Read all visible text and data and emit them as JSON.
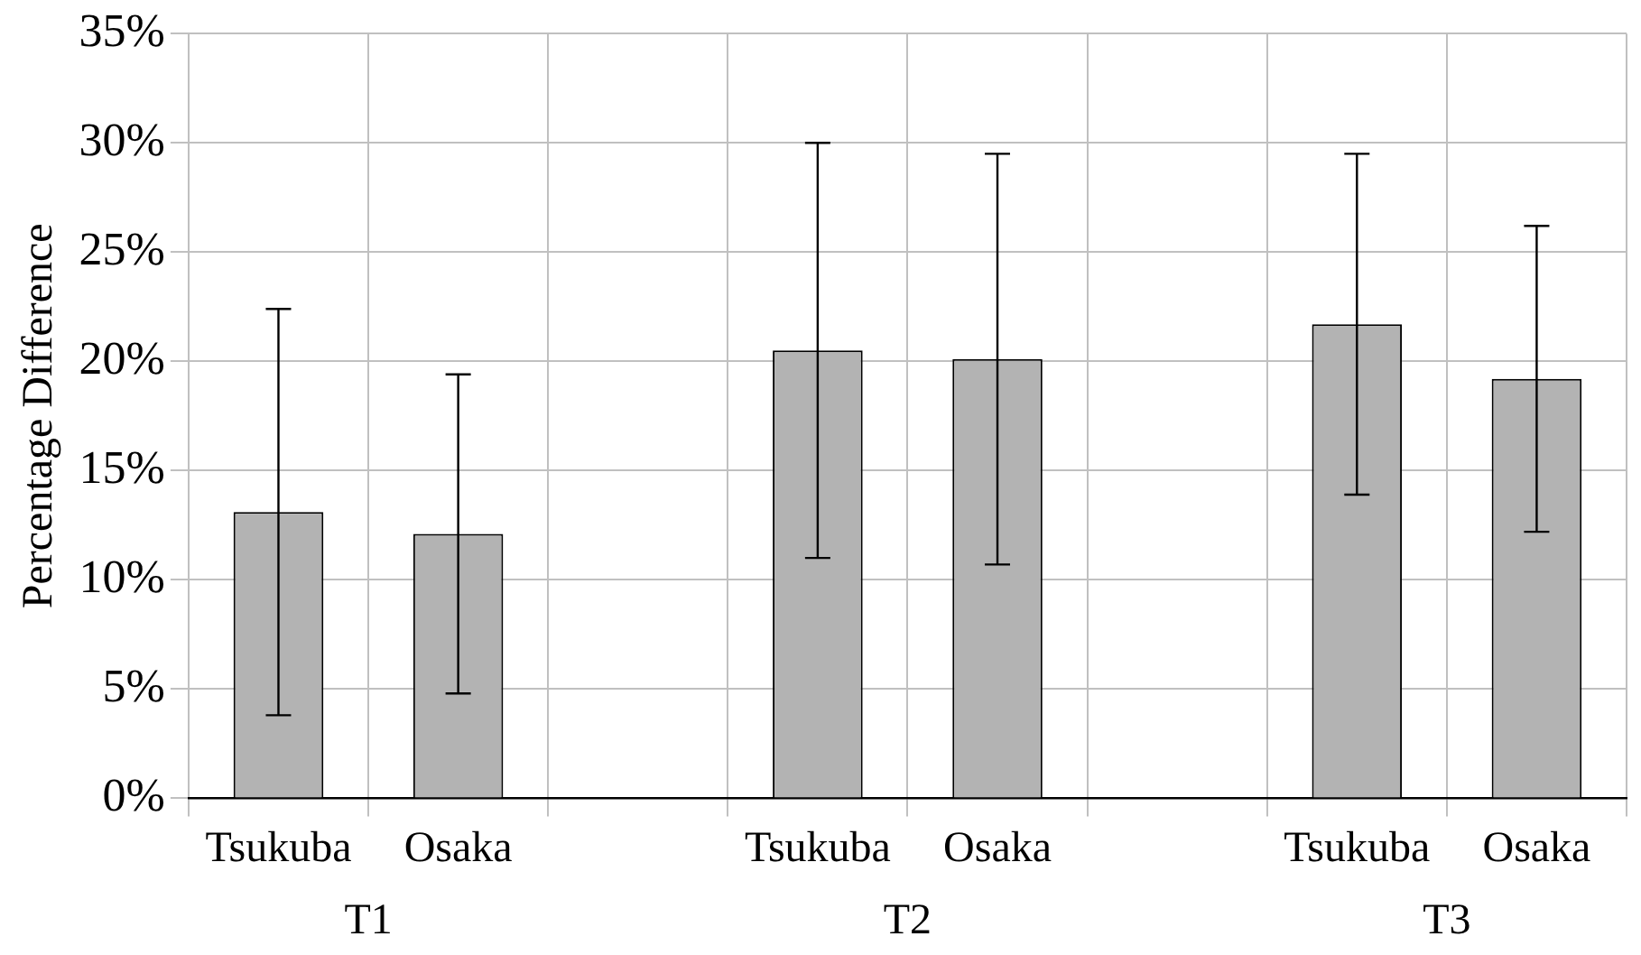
{
  "chart_data": {
    "type": "bar",
    "ylabel": "Percentage Difference",
    "categories": [
      "Tsukuba",
      "Osaka",
      null,
      "Tsukuba",
      "Osaka",
      null,
      "Tsukuba",
      "Osaka"
    ],
    "values": [
      13.1,
      12.1,
      0,
      20.5,
      20.1,
      0,
      21.7,
      19.2
    ],
    "errors": [
      [
        3.8,
        22.4
      ],
      [
        4.8,
        19.4
      ],
      null,
      [
        11.0,
        30.0
      ],
      [
        10.7,
        29.5
      ],
      null,
      [
        13.9,
        29.5
      ],
      [
        12.2,
        26.2
      ]
    ],
    "color": "#b3b3b3",
    "ylim": [
      0,
      35
    ],
    "yticks": [
      {
        "value": 0,
        "label": "0%"
      },
      {
        "value": 5,
        "label": "5%"
      },
      {
        "value": 10,
        "label": "10%"
      },
      {
        "value": 15,
        "label": "15%"
      },
      {
        "value": 20,
        "label": "20%"
      },
      {
        "value": 25,
        "label": "25%"
      },
      {
        "value": 30,
        "label": "30%"
      },
      {
        "value": 35,
        "label": "35%"
      }
    ],
    "annotations": [
      "T1",
      "T2",
      "T3"
    ],
    "grid": true
  }
}
